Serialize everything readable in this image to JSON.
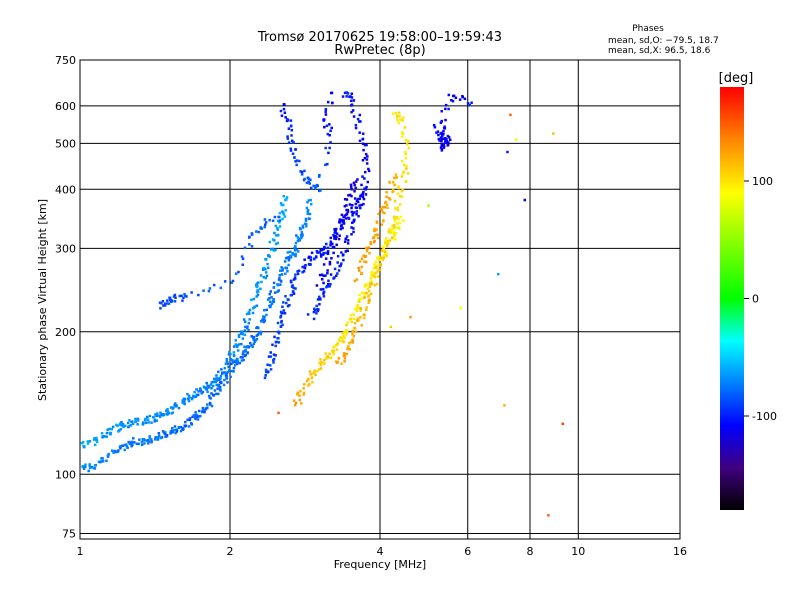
{
  "chart_data": {
    "type": "scatter",
    "title": "Tromsø 20170625 19:58:00–19:59:43",
    "subtitle": "RwPretec (8p)",
    "xlabel": "Frequency [MHz]",
    "ylabel": "Stationary phase Virtual Height [km]",
    "x_scale": "log",
    "y_scale": "log",
    "xlim": [
      1,
      16
    ],
    "ylim": [
      73,
      750
    ],
    "x_ticks": [
      1,
      2,
      4,
      6,
      8,
      10,
      16
    ],
    "y_ticks": [
      75,
      100,
      200,
      300,
      400,
      500,
      600,
      750
    ],
    "grid": true,
    "stats": {
      "heading": "Phases",
      "line1": "mean, sd,O: −79.5, 18.7",
      "line2": "mean, sd,X:  96.5, 18.6"
    },
    "colorbar": {
      "title": "[deg]",
      "range": [
        -180,
        180
      ],
      "ticks": [
        100,
        0,
        -100
      ],
      "colors": [
        "#ff0000",
        "#ff8000",
        "#ffff00",
        "#00ff00",
        "#00ffff",
        "#0080ff",
        "#0000ff",
        "#400080",
        "#000000"
      ]
    },
    "series": [
      {
        "points": [
          [
            1.0,
            105,
            -70
          ],
          [
            1.05,
            103,
            -70
          ],
          [
            1.1,
            106,
            -70
          ],
          [
            1.15,
            110,
            -75
          ],
          [
            1.2,
            114,
            -75
          ],
          [
            1.25,
            116,
            -75
          ],
          [
            1.3,
            118,
            -75
          ],
          [
            1.35,
            117,
            -75
          ],
          [
            1.4,
            119,
            -75
          ],
          [
            1.45,
            121,
            -75
          ],
          [
            1.5,
            122,
            -78
          ],
          [
            1.55,
            124,
            -78
          ],
          [
            1.6,
            126,
            -78
          ],
          [
            1.65,
            128,
            -80
          ],
          [
            1.7,
            131,
            -80
          ],
          [
            1.75,
            135,
            -80
          ],
          [
            1.8,
            140,
            -80
          ],
          [
            1.85,
            148,
            -80
          ],
          [
            1.9,
            152,
            -78
          ],
          [
            1.95,
            158,
            -78
          ],
          [
            2.0,
            165,
            -78
          ],
          [
            2.05,
            172,
            -78
          ],
          [
            2.1,
            178,
            -78
          ],
          [
            2.15,
            183,
            -78
          ],
          [
            2.2,
            188,
            -78
          ],
          [
            2.25,
            195,
            -78
          ],
          [
            2.3,
            205,
            -75
          ],
          [
            2.35,
            215,
            -75
          ],
          [
            2.4,
            228,
            -75
          ],
          [
            2.45,
            240,
            -75
          ],
          [
            2.5,
            255,
            -75
          ],
          [
            2.55,
            268,
            -75
          ],
          [
            2.6,
            280,
            -72
          ],
          [
            2.65,
            290,
            -72
          ],
          [
            2.7,
            300,
            -72
          ],
          [
            2.75,
            315,
            -72
          ],
          [
            2.8,
            330,
            -72
          ],
          [
            2.85,
            350,
            -70
          ],
          [
            2.9,
            380,
            -70
          ]
        ]
      },
      {
        "points": [
          [
            1.0,
            115,
            -60
          ],
          [
            1.05,
            116,
            -60
          ],
          [
            1.1,
            120,
            -65
          ],
          [
            1.15,
            124,
            -65
          ],
          [
            1.2,
            126,
            -65
          ],
          [
            1.25,
            128,
            -68
          ],
          [
            1.3,
            130,
            -68
          ],
          [
            1.35,
            129,
            -68
          ],
          [
            1.4,
            131,
            -68
          ],
          [
            1.45,
            133,
            -68
          ],
          [
            1.5,
            136,
            -70
          ],
          [
            1.55,
            139,
            -70
          ],
          [
            1.6,
            142,
            -70
          ],
          [
            1.65,
            145,
            -70
          ],
          [
            1.7,
            148,
            -72
          ],
          [
            1.75,
            151,
            -72
          ],
          [
            1.8,
            153,
            -72
          ],
          [
            1.85,
            156,
            -72
          ],
          [
            1.9,
            160,
            -72
          ],
          [
            1.95,
            166,
            -72
          ],
          [
            2.0,
            175,
            -72
          ],
          [
            2.05,
            185,
            -70
          ],
          [
            2.1,
            195,
            -70
          ],
          [
            2.15,
            205,
            -70
          ],
          [
            2.2,
            220,
            -68
          ],
          [
            2.25,
            238,
            -68
          ],
          [
            2.3,
            255,
            -68
          ],
          [
            2.35,
            270,
            -65
          ],
          [
            2.4,
            290,
            -65
          ],
          [
            2.45,
            310,
            -65
          ],
          [
            2.5,
            335,
            -62
          ],
          [
            2.55,
            360,
            -62
          ],
          [
            2.6,
            385,
            -60
          ]
        ]
      },
      {
        "points": [
          [
            2.35,
            160,
            -90
          ],
          [
            2.4,
            170,
            -90
          ],
          [
            2.45,
            185,
            -92
          ],
          [
            2.5,
            200,
            -92
          ],
          [
            2.55,
            215,
            -92
          ],
          [
            2.6,
            230,
            -92
          ],
          [
            2.65,
            245,
            -95
          ],
          [
            2.7,
            260,
            -95
          ],
          [
            2.8,
            275,
            -98
          ],
          [
            2.9,
            285,
            -100
          ],
          [
            3.0,
            292,
            -100
          ],
          [
            3.1,
            300,
            -102
          ],
          [
            3.2,
            315,
            -105
          ],
          [
            3.3,
            330,
            -105
          ],
          [
            3.4,
            345,
            -108
          ],
          [
            3.5,
            360,
            -108
          ],
          [
            3.6,
            380,
            -110
          ],
          [
            3.7,
            395,
            -110
          ]
        ]
      },
      {
        "points": [
          [
            2.9,
            215,
            -95
          ],
          [
            3.0,
            228,
            -98
          ],
          [
            3.1,
            245,
            -100
          ],
          [
            3.2,
            260,
            -100
          ],
          [
            3.3,
            278,
            -102
          ],
          [
            3.4,
            300,
            -105
          ],
          [
            3.5,
            330,
            -108
          ],
          [
            3.6,
            360,
            -108
          ],
          [
            3.7,
            400,
            -110
          ],
          [
            3.75,
            450,
            -110
          ],
          [
            3.7,
            500,
            -108
          ],
          [
            3.6,
            560,
            -105
          ],
          [
            3.5,
            620,
            -102
          ],
          [
            3.4,
            640,
            -100
          ]
        ]
      },
      {
        "points": [
          [
            3.0,
            250,
            -110
          ],
          [
            3.1,
            270,
            -112
          ],
          [
            3.2,
            300,
            -115
          ],
          [
            3.3,
            330,
            -115
          ],
          [
            3.4,
            360,
            -118
          ],
          [
            3.5,
            390,
            -118
          ],
          [
            3.6,
            420,
            -120
          ]
        ]
      },
      {
        "points": [
          [
            2.55,
            600,
            -105
          ],
          [
            2.6,
            560,
            -100
          ],
          [
            2.65,
            510,
            -95
          ],
          [
            2.7,
            470,
            -92
          ],
          [
            2.8,
            430,
            -88
          ],
          [
            2.9,
            410,
            -85
          ],
          [
            3.0,
            400,
            -82
          ],
          [
            3.2,
            510,
            -100
          ],
          [
            3.1,
            560,
            -105
          ],
          [
            3.2,
            640,
            -108
          ]
        ]
      },
      {
        "points": [
          [
            5.2,
            540,
            -105
          ],
          [
            5.3,
            520,
            -108
          ],
          [
            5.35,
            500,
            -110
          ],
          [
            5.4,
            490,
            -110
          ],
          [
            5.45,
            515,
            -108
          ],
          [
            5.3,
            560,
            -105
          ],
          [
            5.6,
            640,
            -110
          ],
          [
            6.1,
            610,
            -100
          ]
        ]
      },
      {
        "points": [
          [
            1.45,
            228,
            -90
          ],
          [
            1.5,
            232,
            -88
          ],
          [
            1.55,
            235,
            -88
          ],
          [
            1.65,
            240,
            -85
          ],
          [
            2.0,
            255,
            -80
          ],
          [
            2.2,
            310,
            -85
          ],
          [
            2.3,
            335,
            -85
          ],
          [
            2.5,
            350,
            -80
          ]
        ]
      },
      {
        "points": [
          [
            2.7,
            140,
            130
          ],
          [
            2.8,
            150,
            120
          ],
          [
            2.9,
            160,
            115
          ],
          [
            3.0,
            168,
            110
          ],
          [
            3.1,
            175,
            108
          ],
          [
            3.2,
            182,
            105
          ],
          [
            3.3,
            190,
            102
          ],
          [
            3.4,
            198,
            100
          ],
          [
            3.5,
            210,
            100
          ],
          [
            3.6,
            225,
            98
          ],
          [
            3.7,
            240,
            95
          ],
          [
            3.8,
            255,
            95
          ],
          [
            3.9,
            270,
            95
          ],
          [
            4.0,
            285,
            92
          ],
          [
            4.1,
            300,
            92
          ],
          [
            4.2,
            315,
            92
          ],
          [
            4.3,
            330,
            90
          ],
          [
            4.4,
            350,
            90
          ]
        ]
      },
      {
        "points": [
          [
            3.3,
            170,
            125
          ],
          [
            3.4,
            180,
            125
          ],
          [
            3.5,
            192,
            122
          ],
          [
            3.6,
            205,
            120
          ],
          [
            3.7,
            220,
            118
          ],
          [
            3.8,
            238,
            115
          ],
          [
            3.9,
            255,
            112
          ],
          [
            4.0,
            275,
            110
          ],
          [
            4.1,
            300,
            108
          ],
          [
            4.2,
            330,
            105
          ],
          [
            4.3,
            360,
            105
          ],
          [
            4.4,
            400,
            102
          ],
          [
            4.5,
            440,
            102
          ],
          [
            4.5,
            500,
            100
          ],
          [
            4.4,
            560,
            100
          ],
          [
            4.3,
            580,
            100
          ]
        ]
      },
      {
        "points": [
          [
            3.6,
            260,
            130
          ],
          [
            3.7,
            280,
            130
          ],
          [
            3.8,
            300,
            128
          ],
          [
            3.9,
            320,
            128
          ],
          [
            4.0,
            345,
            125
          ],
          [
            4.1,
            370,
            125
          ],
          [
            4.2,
            400,
            120
          ],
          [
            4.3,
            430,
            118
          ]
        ]
      },
      {
        "points": [
          [
            7.3,
            575,
            150
          ],
          [
            7.5,
            510,
            80
          ],
          [
            7.2,
            480,
            -100
          ],
          [
            7.8,
            380,
            -110
          ],
          [
            8.9,
            525,
            115
          ],
          [
            8.7,
            82,
            150
          ],
          [
            9.3,
            128,
            160
          ],
          [
            7.1,
            140,
            120
          ],
          [
            5.0,
            370,
            60
          ],
          [
            6.9,
            265,
            -60
          ],
          [
            5.8,
            225,
            90
          ],
          [
            4.2,
            205,
            110
          ],
          [
            4.6,
            215,
            130
          ],
          [
            2.5,
            135,
            150
          ]
        ]
      }
    ]
  }
}
